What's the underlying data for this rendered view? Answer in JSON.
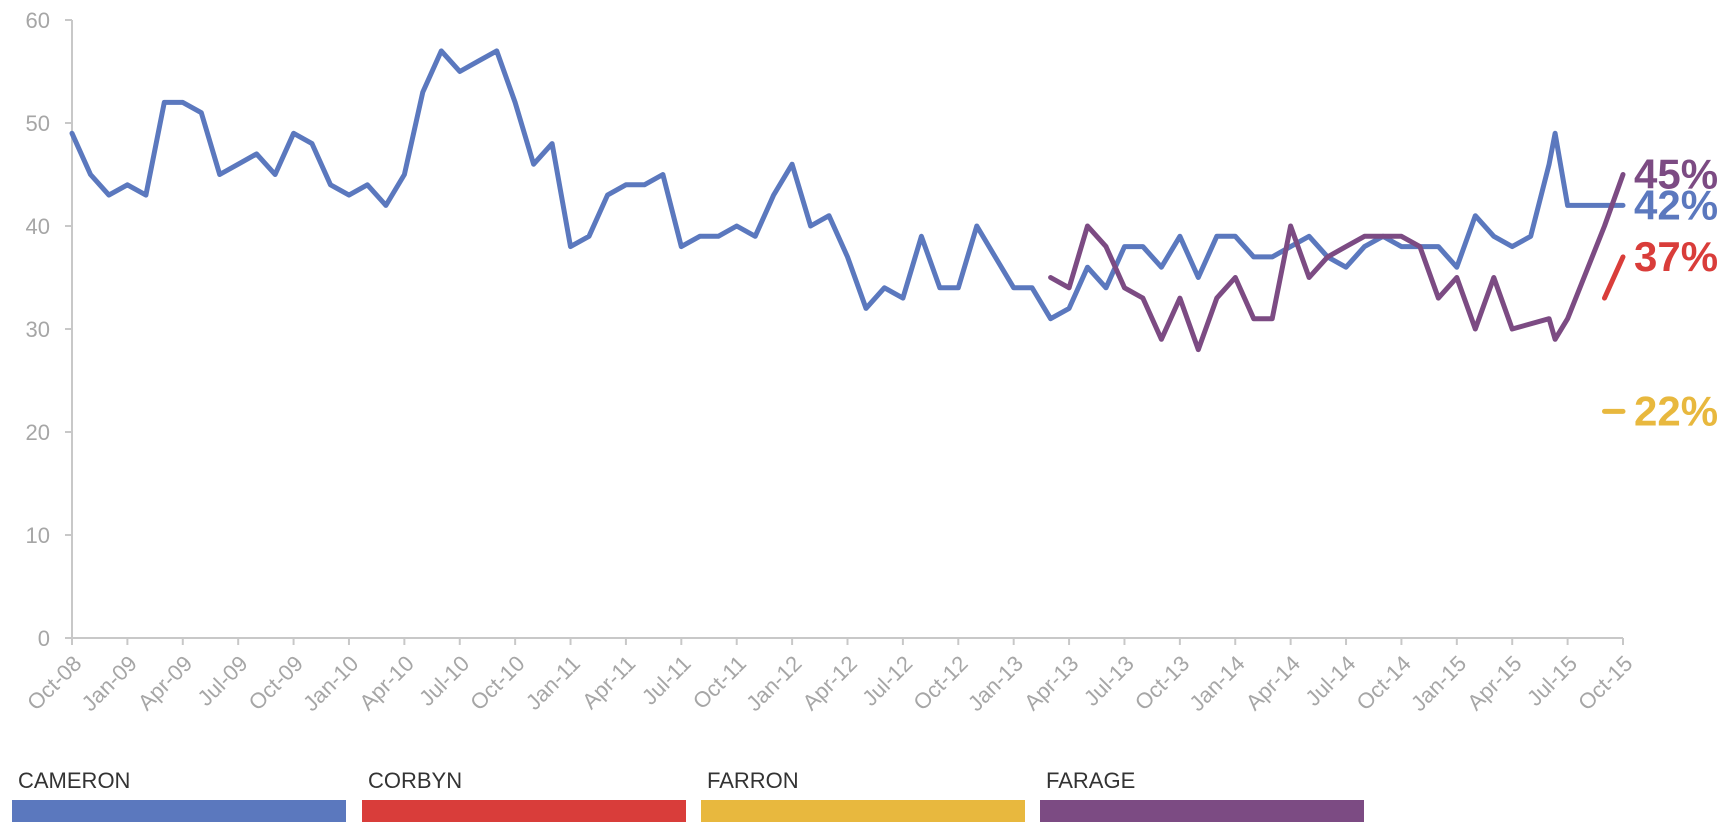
{
  "chart_data": {
    "type": "line",
    "title": "",
    "xlabel": "",
    "ylabel": "",
    "ylim": [
      0,
      60
    ],
    "yticks": [
      0,
      10,
      20,
      30,
      40,
      50,
      60
    ],
    "x_range": [
      "Oct-08",
      "Oct-15"
    ],
    "x_tick_labels": [
      "Oct-08",
      "Jan-09",
      "Apr-09",
      "Jul-09",
      "Oct-09",
      "Jan-10",
      "Apr-10",
      "Jul-10",
      "Oct-10",
      "Jan-11",
      "Apr-11",
      "Jul-11",
      "Oct-11",
      "Jan-12",
      "Apr-12",
      "Jul-12",
      "Oct-12",
      "Jan-13",
      "Apr-13",
      "Jul-13",
      "Oct-13",
      "Jan-14",
      "Apr-14",
      "Jul-14",
      "Oct-14",
      "Jan-15",
      "Apr-15",
      "Jul-15",
      "Oct-15"
    ],
    "legend_position": "bottom",
    "grid": false,
    "series": [
      {
        "name": "CAMERON",
        "color": "#5b78be",
        "end_label": "42%",
        "points": [
          [
            "Oct-08",
            49
          ],
          [
            "Nov-08",
            45
          ],
          [
            "Dec-08",
            43
          ],
          [
            "Jan-09",
            44
          ],
          [
            "Feb-09",
            43
          ],
          [
            "Mar-09",
            52
          ],
          [
            "Apr-09",
            52
          ],
          [
            "May-09",
            51
          ],
          [
            "Jun-09",
            45
          ],
          [
            "Jul-09",
            46
          ],
          [
            "Aug-09",
            47
          ],
          [
            "Sep-09",
            45
          ],
          [
            "Oct-09",
            49
          ],
          [
            "Nov-09",
            48
          ],
          [
            "Dec-09",
            44
          ],
          [
            "Jan-10",
            43
          ],
          [
            "Feb-10",
            44
          ],
          [
            "Mar-10",
            42
          ],
          [
            "Apr-10",
            45
          ],
          [
            "May-10",
            53
          ],
          [
            "Jun-10",
            57
          ],
          [
            "Jul-10",
            55
          ],
          [
            "Aug-10",
            56
          ],
          [
            "Sep-10",
            57
          ],
          [
            "Oct-10",
            52
          ],
          [
            "Nov-10",
            46
          ],
          [
            "Dec-10",
            48
          ],
          [
            "Jan-11",
            38
          ],
          [
            "Feb-11",
            39
          ],
          [
            "Mar-11",
            43
          ],
          [
            "Apr-11",
            44
          ],
          [
            "May-11",
            44
          ],
          [
            "Jun-11",
            45
          ],
          [
            "Jul-11",
            38
          ],
          [
            "Aug-11",
            39
          ],
          [
            "Sep-11",
            39
          ],
          [
            "Oct-11",
            40
          ],
          [
            "Nov-11",
            39
          ],
          [
            "Dec-11",
            43
          ],
          [
            "Jan-12",
            46
          ],
          [
            "Feb-12",
            40
          ],
          [
            "Mar-12",
            41
          ],
          [
            "Apr-12",
            37
          ],
          [
            "May-12",
            32
          ],
          [
            "Jun-12",
            34
          ],
          [
            "Jul-12",
            33
          ],
          [
            "Aug-12",
            39
          ],
          [
            "Sep-12",
            34
          ],
          [
            "Oct-12",
            34
          ],
          [
            "Nov-12",
            40
          ],
          [
            "Dec-12",
            37
          ],
          [
            "Jan-13",
            34
          ],
          [
            "Feb-13",
            34
          ],
          [
            "Mar-13",
            31
          ],
          [
            "Apr-13",
            32
          ],
          [
            "May-13",
            36
          ],
          [
            "Jun-13",
            34
          ],
          [
            "Jul-13",
            38
          ],
          [
            "Aug-13",
            38
          ],
          [
            "Sep-13",
            36
          ],
          [
            "Oct-13",
            39
          ],
          [
            "Nov-13",
            35
          ],
          [
            "Dec-13",
            39
          ],
          [
            "Jan-14",
            39
          ],
          [
            "Feb-14",
            37
          ],
          [
            "Mar-14",
            37
          ],
          [
            "Apr-14",
            38
          ],
          [
            "May-14",
            39
          ],
          [
            "Jun-14",
            37
          ],
          [
            "Jul-14",
            36
          ],
          [
            "Aug-14",
            38
          ],
          [
            "Sep-14",
            39
          ],
          [
            "Oct-14",
            38
          ],
          [
            "Nov-14",
            38
          ],
          [
            "Dec-14",
            38
          ],
          [
            "Jan-15",
            36
          ],
          [
            "Feb-15",
            41
          ],
          [
            "Mar-15",
            39
          ],
          [
            "Apr-15",
            38
          ],
          [
            "May-15",
            39
          ],
          [
            "Jun-15",
            46
          ],
          [
            "Jun-15",
            49
          ],
          [
            "Jul-15",
            42
          ],
          [
            "Aug-15",
            42
          ],
          [
            "Sep-15",
            42
          ],
          [
            "Oct-15",
            42
          ]
        ]
      },
      {
        "name": "CORBYN",
        "color": "#d93d3a",
        "end_label": "37%",
        "points": [
          [
            "Sep-15",
            33
          ],
          [
            "Oct-15",
            37
          ]
        ]
      },
      {
        "name": "FARRON",
        "color": "#e8b83e",
        "end_label": "22%",
        "points": [
          [
            "Sep-15",
            22
          ],
          [
            "Oct-15",
            22
          ]
        ]
      },
      {
        "name": "FARAGE",
        "color": "#7c4b83",
        "end_label": "45%",
        "points": [
          [
            "Mar-13",
            35
          ],
          [
            "Apr-13",
            34
          ],
          [
            "May-13",
            40
          ],
          [
            "Jun-13",
            38
          ],
          [
            "Jul-13",
            34
          ],
          [
            "Aug-13",
            33
          ],
          [
            "Sep-13",
            29
          ],
          [
            "Oct-13",
            33
          ],
          [
            "Nov-13",
            28
          ],
          [
            "Dec-13",
            33
          ],
          [
            "Jan-14",
            35
          ],
          [
            "Feb-14",
            31
          ],
          [
            "Mar-14",
            31
          ],
          [
            "Apr-14",
            40
          ],
          [
            "May-14",
            35
          ],
          [
            "Jun-14",
            37
          ],
          [
            "Jul-14",
            38
          ],
          [
            "Aug-14",
            39
          ],
          [
            "Sep-14",
            39
          ],
          [
            "Oct-14",
            39
          ],
          [
            "Nov-14",
            38
          ],
          [
            "Dec-14",
            33
          ],
          [
            "Jan-15",
            35
          ],
          [
            "Feb-15",
            30
          ],
          [
            "Mar-15",
            35
          ],
          [
            "Apr-15",
            30
          ],
          [
            "Jun-15",
            31
          ],
          [
            "Jun-15",
            29
          ],
          [
            "Jul-15",
            31
          ],
          [
            "Sep-15",
            40
          ],
          [
            "Oct-15",
            45
          ]
        ]
      }
    ]
  }
}
